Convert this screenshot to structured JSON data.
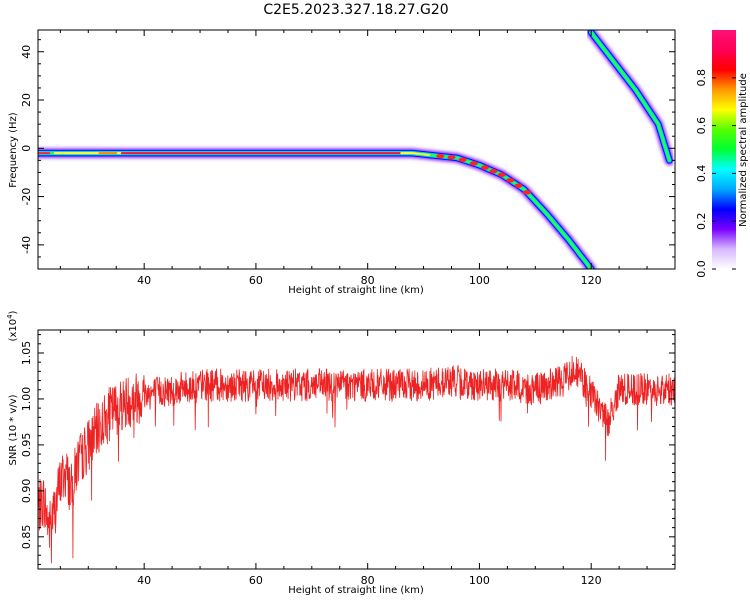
{
  "figure": {
    "title": "C2E5.2023.327.18.27.G20"
  },
  "chart_data": [
    {
      "type": "heatmap",
      "panel": "spectrogram",
      "xlabel": "Height of straight line (km)",
      "ylabel": "Frequency (Hz)",
      "xlim": [
        21,
        135
      ],
      "ylim": [
        -50,
        49
      ],
      "xticks": [
        "40",
        "60",
        "80",
        "100",
        "120"
      ],
      "yticks": [
        "40",
        "20",
        "0",
        "-20",
        "-40"
      ],
      "colorbar": {
        "label": "Normalized spectral amplitude",
        "range": [
          0,
          1
        ],
        "ticks": [
          "0.0",
          "0.2",
          "0.4",
          "0.6",
          "0.8"
        ],
        "colormap": [
          "#ffffff",
          "#d8b8ff",
          "#7700ff",
          "#0000ff",
          "#00a8ff",
          "#00ffff",
          "#00ff33",
          "#55ff00",
          "#ffff00",
          "#ff9900",
          "#ff0000",
          "#ff0055",
          "#ff1177"
        ]
      },
      "tracks": [
        {
          "name": "",
          "x": [
            21,
            30,
            40,
            60,
            80,
            88,
            92,
            96,
            100,
            104,
            108,
            112,
            116,
            120
          ],
          "y": [
            -2,
            -2,
            -2,
            -2,
            -2,
            -2,
            -3,
            -4,
            -7,
            -11,
            -17,
            -27,
            -38,
            -50
          ]
        },
        {
          "name": "",
          "x": [
            120,
            124,
            128,
            132,
            134
          ],
          "y": [
            48,
            36,
            24,
            10,
            -5
          ]
        }
      ]
    },
    {
      "type": "line",
      "panel": "snr",
      "xlabel": "Height of straight line (km)",
      "ylabel": "SNR (10 * v/v)",
      "yunit": "(x10",
      "yunit_exp": "4",
      "yunit_close": ")",
      "xlim": [
        21,
        135
      ],
      "ylim": [
        0.815,
        1.075
      ],
      "xticks": [
        "40",
        "60",
        "80",
        "100",
        "120"
      ],
      "yticks": [
        "1.05",
        "1.00",
        "0.95",
        "0.90",
        "0.85"
      ],
      "series": [
        {
          "name": "",
          "color": "#ee2222",
          "x": [
            21,
            22,
            23,
            24,
            25,
            26,
            27,
            28,
            30,
            32,
            34,
            36,
            38,
            40,
            45,
            50,
            60,
            70,
            80,
            90,
            95,
            100,
            105,
            110,
            115,
            117,
            119,
            121,
            123,
            125,
            130,
            135
          ],
          "y": [
            0.88,
            0.89,
            0.86,
            0.88,
            0.91,
            0.92,
            0.9,
            0.93,
            0.95,
            0.97,
            0.985,
            0.995,
            1.0,
            1.005,
            1.01,
            1.015,
            1.015,
            1.015,
            1.015,
            1.015,
            1.02,
            1.015,
            1.015,
            1.01,
            1.02,
            1.035,
            1.015,
            0.995,
            0.975,
            1.01,
            1.01,
            1.01
          ]
        }
      ]
    }
  ]
}
